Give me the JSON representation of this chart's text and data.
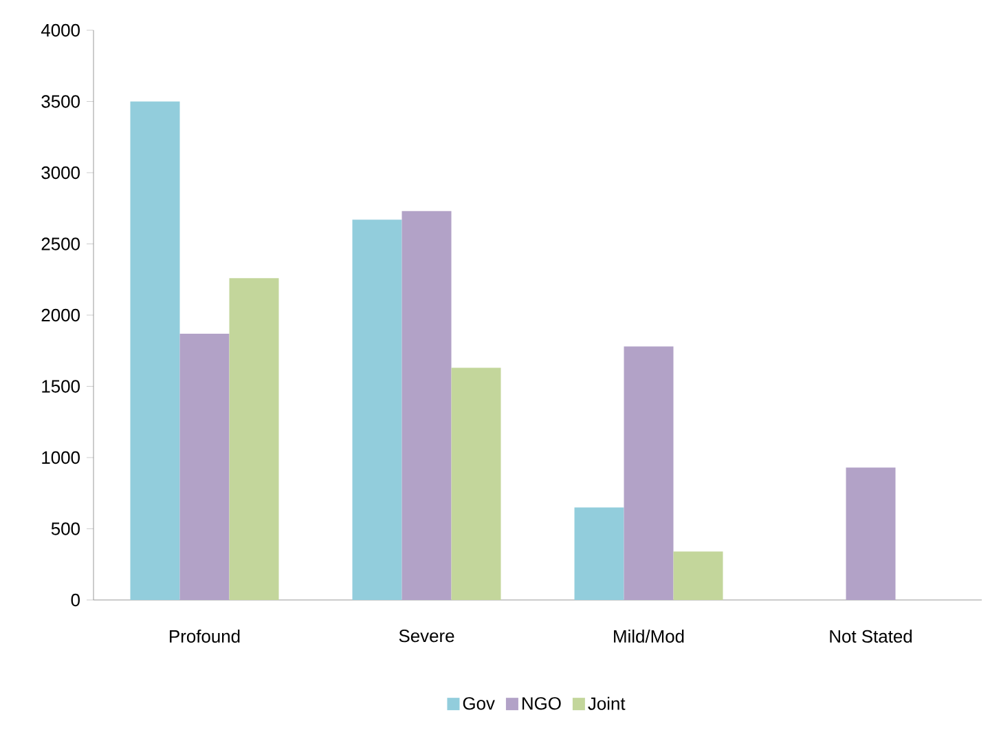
{
  "chart_data": {
    "type": "bar",
    "categories": [
      "Profound",
      "Severe",
      "Mild/Mod",
      "Not Stated"
    ],
    "series": [
      {
        "name": "Gov",
        "color": "#92cddc",
        "values": [
          3500,
          2670,
          650,
          0
        ]
      },
      {
        "name": "NGO",
        "color": "#b2a2c7",
        "values": [
          1870,
          2730,
          1780,
          930
        ]
      },
      {
        "name": "Joint",
        "color": "#c3d69b",
        "values": [
          2260,
          1630,
          340,
          0
        ]
      }
    ],
    "ylim": [
      0,
      4000
    ],
    "yticks": [
      0,
      500,
      1000,
      1500,
      2000,
      2500,
      3000,
      3500,
      4000
    ],
    "grid": false,
    "legend": "bottom"
  }
}
